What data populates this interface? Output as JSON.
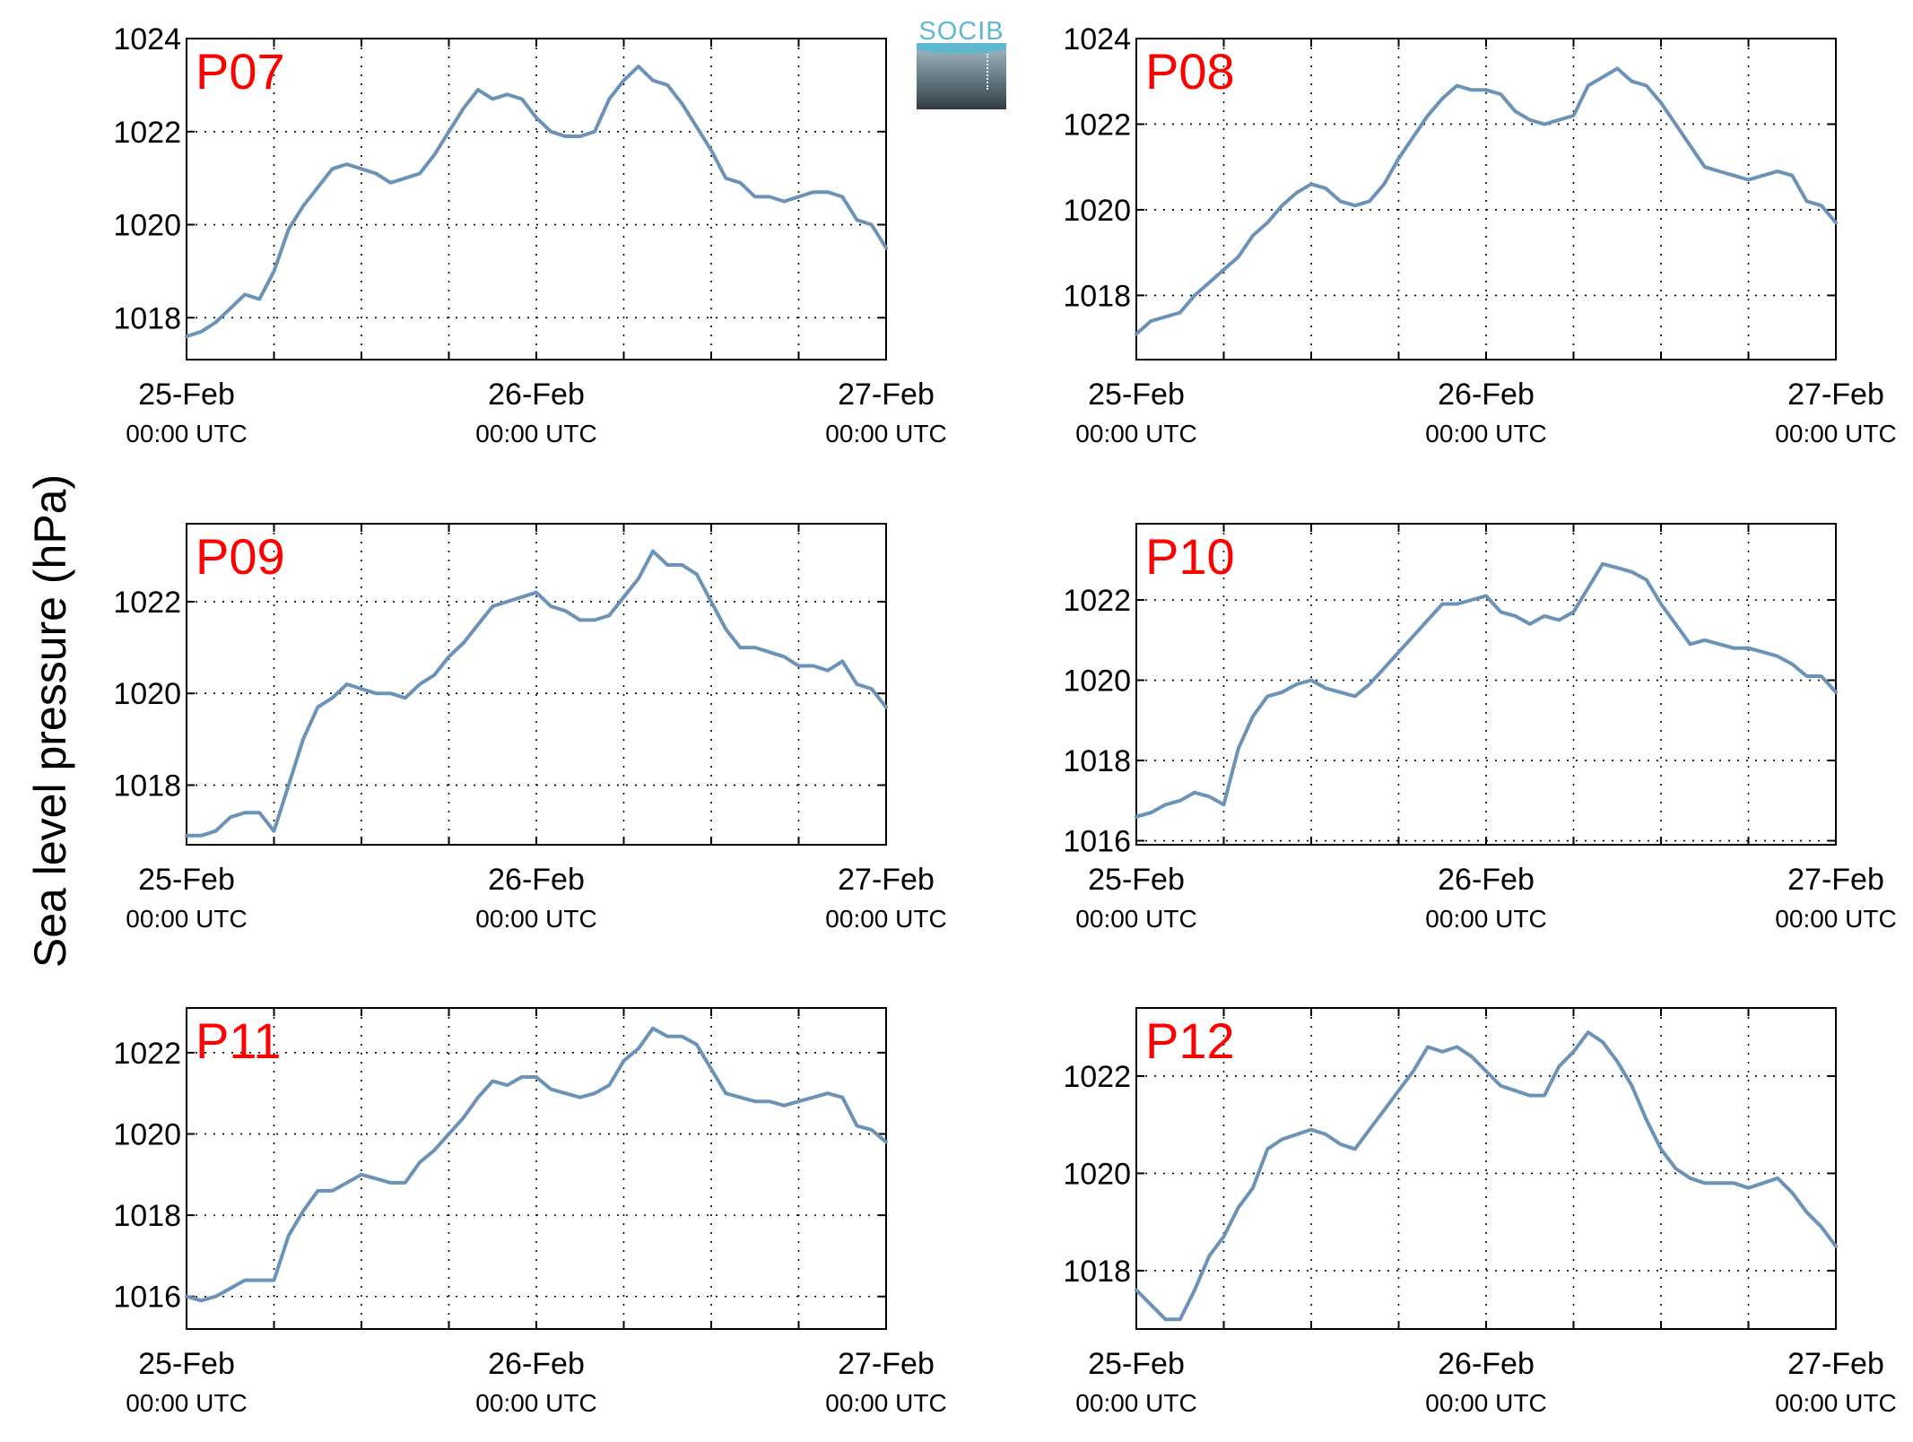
{
  "figure": {
    "ylabel": "Sea level pressure (hPa)",
    "logo_text": "SOCIB",
    "line_color": "#6a93b7",
    "label_color": "#ff0000"
  },
  "chart_data": [
    {
      "type": "line",
      "title": "P07",
      "x_unit": "hours since 25-Feb 00:00 UTC",
      "xlim": [
        0,
        48
      ],
      "ylim": [
        1017.1,
        1024
      ],
      "yticks": [
        1018,
        1020,
        1022,
        1024
      ],
      "xticks": [
        {
          "label": "25-Feb",
          "sublabel": "00:00 UTC"
        },
        {
          "label": "26-Feb",
          "sublabel": "00:00 UTC"
        },
        {
          "label": "27-Feb",
          "sublabel": "00:00 UTC"
        }
      ],
      "grid": true,
      "x": [
        0,
        1,
        2,
        3,
        4,
        5,
        6,
        7,
        8,
        9,
        10,
        11,
        12,
        13,
        14,
        15,
        16,
        17,
        18,
        19,
        20,
        21,
        22,
        23,
        24,
        25,
        26,
        27,
        28,
        29,
        30,
        31,
        32,
        33,
        34,
        35,
        36,
        37,
        38,
        39,
        40,
        41,
        42,
        43,
        44,
        45,
        46,
        47,
        48
      ],
      "y": [
        1017.6,
        1017.7,
        1017.9,
        1018.2,
        1018.5,
        1018.4,
        1019.0,
        1019.9,
        1020.4,
        1020.8,
        1021.2,
        1021.3,
        1021.2,
        1021.1,
        1020.9,
        1021.0,
        1021.1,
        1021.5,
        1022.0,
        1022.5,
        1022.9,
        1022.7,
        1022.8,
        1022.7,
        1022.3,
        1022.0,
        1021.9,
        1021.9,
        1022.0,
        1022.7,
        1023.1,
        1023.4,
        1023.1,
        1023.0,
        1022.6,
        1022.1,
        1021.6,
        1021.0,
        1020.9,
        1020.6,
        1020.6,
        1020.5,
        1020.6,
        1020.7,
        1020.7,
        1020.6,
        1020.1,
        1020.0,
        1019.5
      ]
    },
    {
      "type": "line",
      "title": "P08",
      "x_unit": "hours since 25-Feb 00:00 UTC",
      "xlim": [
        0,
        48
      ],
      "ylim": [
        1016.5,
        1024
      ],
      "yticks": [
        1018,
        1020,
        1022,
        1024
      ],
      "xticks": [
        {
          "label": "25-Feb",
          "sublabel": "00:00 UTC"
        },
        {
          "label": "26-Feb",
          "sublabel": "00:00 UTC"
        },
        {
          "label": "27-Feb",
          "sublabel": "00:00 UTC"
        }
      ],
      "grid": true,
      "x": [
        0,
        1,
        2,
        3,
        4,
        5,
        6,
        7,
        8,
        9,
        10,
        11,
        12,
        13,
        14,
        15,
        16,
        17,
        18,
        19,
        20,
        21,
        22,
        23,
        24,
        25,
        26,
        27,
        28,
        29,
        30,
        31,
        32,
        33,
        34,
        35,
        36,
        37,
        38,
        39,
        40,
        41,
        42,
        43,
        44,
        45,
        46,
        47,
        48
      ],
      "y": [
        1017.1,
        1017.4,
        1017.5,
        1017.6,
        1018.0,
        1018.3,
        1018.6,
        1018.9,
        1019.4,
        1019.7,
        1020.1,
        1020.4,
        1020.6,
        1020.5,
        1020.2,
        1020.1,
        1020.2,
        1020.6,
        1021.2,
        1021.7,
        1022.2,
        1022.6,
        1022.9,
        1022.8,
        1022.8,
        1022.7,
        1022.3,
        1022.1,
        1022.0,
        1022.1,
        1022.2,
        1022.9,
        1023.1,
        1023.3,
        1023.0,
        1022.9,
        1022.5,
        1022.0,
        1021.5,
        1021.0,
        1020.9,
        1020.8,
        1020.7,
        1020.8,
        1020.9,
        1020.8,
        1020.2,
        1020.1,
        1019.7
      ]
    },
    {
      "type": "line",
      "title": "P09",
      "x_unit": "hours since 25-Feb 00:00 UTC",
      "xlim": [
        0,
        48
      ],
      "ylim": [
        1016.7,
        1023.7
      ],
      "yticks": [
        1018,
        1020,
        1022
      ],
      "xticks": [
        {
          "label": "25-Feb",
          "sublabel": "00:00 UTC"
        },
        {
          "label": "26-Feb",
          "sublabel": "00:00 UTC"
        },
        {
          "label": "27-Feb",
          "sublabel": "00:00 UTC"
        }
      ],
      "grid": true,
      "x": [
        0,
        1,
        2,
        3,
        4,
        5,
        6,
        7,
        8,
        9,
        10,
        11,
        12,
        13,
        14,
        15,
        16,
        17,
        18,
        19,
        20,
        21,
        22,
        23,
        24,
        25,
        26,
        27,
        28,
        29,
        30,
        31,
        32,
        33,
        34,
        35,
        36,
        37,
        38,
        39,
        40,
        41,
        42,
        43,
        44,
        45,
        46,
        47,
        48
      ],
      "y": [
        1016.9,
        1016.9,
        1017.0,
        1017.3,
        1017.4,
        1017.4,
        1017.0,
        1018.0,
        1019.0,
        1019.7,
        1019.9,
        1020.2,
        1020.1,
        1020.0,
        1020.0,
        1019.9,
        1020.2,
        1020.4,
        1020.8,
        1021.1,
        1021.5,
        1021.9,
        1022.0,
        1022.1,
        1022.2,
        1021.9,
        1021.8,
        1021.6,
        1021.6,
        1021.7,
        1022.1,
        1022.5,
        1023.1,
        1022.8,
        1022.8,
        1022.6,
        1022.0,
        1021.4,
        1021.0,
        1021.0,
        1020.9,
        1020.8,
        1020.6,
        1020.6,
        1020.5,
        1020.7,
        1020.2,
        1020.1,
        1019.7
      ]
    },
    {
      "type": "line",
      "title": "P10",
      "x_unit": "hours since 25-Feb 00:00 UTC",
      "xlim": [
        0,
        48
      ],
      "ylim": [
        1015.9,
        1023.9
      ],
      "yticks": [
        1016,
        1018,
        1020,
        1022
      ],
      "xticks": [
        {
          "label": "25-Feb",
          "sublabel": "00:00 UTC"
        },
        {
          "label": "26-Feb",
          "sublabel": "00:00 UTC"
        },
        {
          "label": "27-Feb",
          "sublabel": "00:00 UTC"
        }
      ],
      "grid": true,
      "x": [
        0,
        1,
        2,
        3,
        4,
        5,
        6,
        7,
        8,
        9,
        10,
        11,
        12,
        13,
        14,
        15,
        16,
        17,
        18,
        19,
        20,
        21,
        22,
        23,
        24,
        25,
        26,
        27,
        28,
        29,
        30,
        31,
        32,
        33,
        34,
        35,
        36,
        37,
        38,
        39,
        40,
        41,
        42,
        43,
        44,
        45,
        46,
        47,
        48
      ],
      "y": [
        1016.6,
        1016.7,
        1016.9,
        1017.0,
        1017.2,
        1017.1,
        1016.9,
        1018.3,
        1019.1,
        1019.6,
        1019.7,
        1019.9,
        1020.0,
        1019.8,
        1019.7,
        1019.6,
        1019.9,
        1020.3,
        1020.7,
        1021.1,
        1021.5,
        1021.9,
        1021.9,
        1022.0,
        1022.1,
        1021.7,
        1021.6,
        1021.4,
        1021.6,
        1021.5,
        1021.7,
        1022.3,
        1022.9,
        1022.8,
        1022.7,
        1022.5,
        1021.9,
        1021.4,
        1020.9,
        1021.0,
        1020.9,
        1020.8,
        1020.8,
        1020.7,
        1020.6,
        1020.4,
        1020.1,
        1020.1,
        1019.7
      ]
    },
    {
      "type": "line",
      "title": "P11",
      "x_unit": "hours since 25-Feb 00:00 UTC",
      "xlim": [
        0,
        48
      ],
      "ylim": [
        1015.2,
        1023.1
      ],
      "yticks": [
        1016,
        1018,
        1020,
        1022
      ],
      "xticks": [
        {
          "label": "25-Feb",
          "sublabel": "00:00 UTC"
        },
        {
          "label": "26-Feb",
          "sublabel": "00:00 UTC"
        },
        {
          "label": "27-Feb",
          "sublabel": "00:00 UTC"
        }
      ],
      "grid": true,
      "x": [
        0,
        1,
        2,
        3,
        4,
        5,
        6,
        7,
        8,
        9,
        10,
        11,
        12,
        13,
        14,
        15,
        16,
        17,
        18,
        19,
        20,
        21,
        22,
        23,
        24,
        25,
        26,
        27,
        28,
        29,
        30,
        31,
        32,
        33,
        34,
        35,
        36,
        37,
        38,
        39,
        40,
        41,
        42,
        43,
        44,
        45,
        46,
        47,
        48
      ],
      "y": [
        1016.0,
        1015.9,
        1016.0,
        1016.2,
        1016.4,
        1016.4,
        1016.4,
        1017.5,
        1018.1,
        1018.6,
        1018.6,
        1018.8,
        1019.0,
        1018.9,
        1018.8,
        1018.8,
        1019.3,
        1019.6,
        1020.0,
        1020.4,
        1020.9,
        1021.3,
        1021.2,
        1021.4,
        1021.4,
        1021.1,
        1021.0,
        1020.9,
        1021.0,
        1021.2,
        1021.8,
        1022.1,
        1022.6,
        1022.4,
        1022.4,
        1022.2,
        1021.6,
        1021.0,
        1020.9,
        1020.8,
        1020.8,
        1020.7,
        1020.8,
        1020.9,
        1021.0,
        1020.9,
        1020.2,
        1020.1,
        1019.8
      ]
    },
    {
      "type": "line",
      "title": "P12",
      "x_unit": "hours since 25-Feb 00:00 UTC",
      "xlim": [
        0,
        48
      ],
      "ylim": [
        1016.8,
        1023.4
      ],
      "yticks": [
        1018,
        1020,
        1022
      ],
      "xticks": [
        {
          "label": "25-Feb",
          "sublabel": "00:00 UTC"
        },
        {
          "label": "26-Feb",
          "sublabel": "00:00 UTC"
        },
        {
          "label": "27-Feb",
          "sublabel": "00:00 UTC"
        }
      ],
      "grid": true,
      "x": [
        0,
        1,
        2,
        3,
        4,
        5,
        6,
        7,
        8,
        9,
        10,
        11,
        12,
        13,
        14,
        15,
        16,
        17,
        18,
        19,
        20,
        21,
        22,
        23,
        24,
        25,
        26,
        27,
        28,
        29,
        30,
        31,
        32,
        33,
        34,
        35,
        36,
        37,
        38,
        39,
        40,
        41,
        42,
        43,
        44,
        45,
        46,
        47,
        48
      ],
      "y": [
        1017.6,
        1017.3,
        1017.0,
        1017.0,
        1017.6,
        1018.3,
        1018.7,
        1019.3,
        1019.7,
        1020.5,
        1020.7,
        1020.8,
        1020.9,
        1020.8,
        1020.6,
        1020.5,
        1020.9,
        1021.3,
        1021.7,
        1022.1,
        1022.6,
        1022.5,
        1022.6,
        1022.4,
        1022.1,
        1021.8,
        1021.7,
        1021.6,
        1021.6,
        1022.2,
        1022.5,
        1022.9,
        1022.7,
        1022.3,
        1021.8,
        1021.1,
        1020.5,
        1020.1,
        1019.9,
        1019.8,
        1019.8,
        1019.8,
        1019.7,
        1019.8,
        1019.9,
        1019.6,
        1019.2,
        1018.9,
        1018.5
      ]
    }
  ]
}
